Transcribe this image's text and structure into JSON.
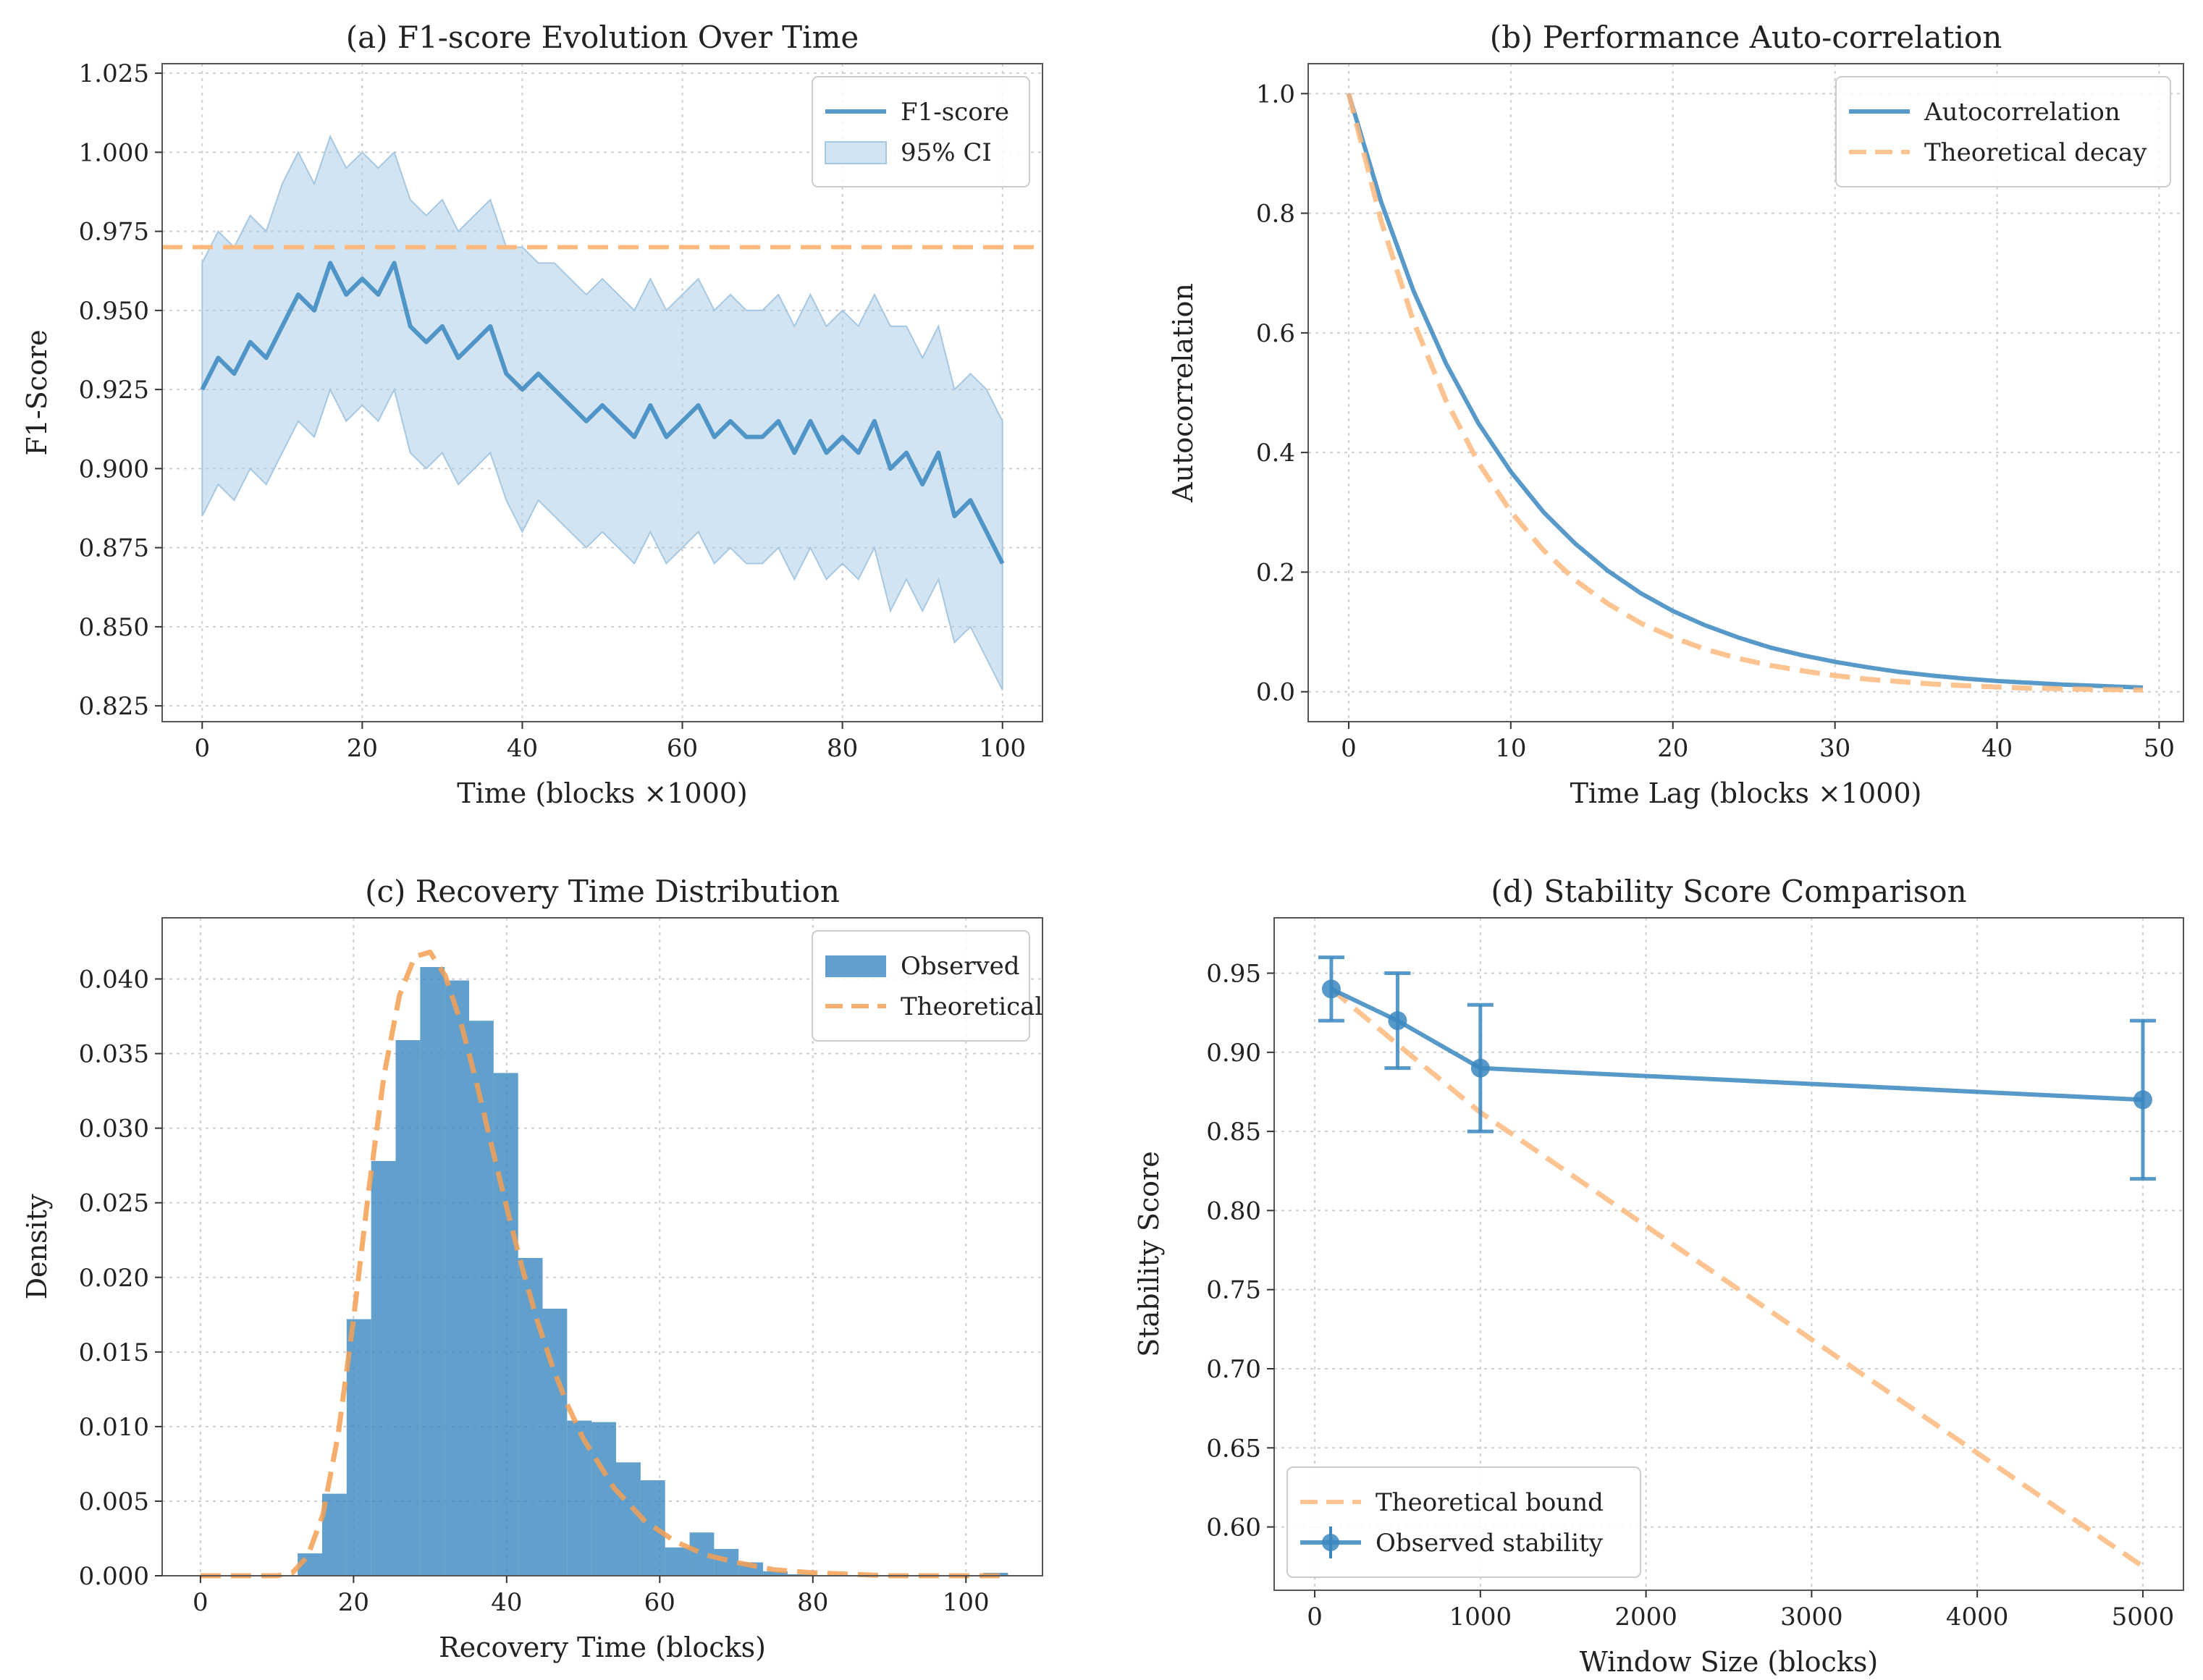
{
  "chart_data": [
    {
      "id": "a",
      "type": "line",
      "title": "(a) F1-score Evolution Over Time",
      "xlabel": "Time (blocks ×1000)",
      "ylabel": "F1-Score",
      "xlim": [
        -5,
        105
      ],
      "ylim": [
        0.82,
        1.028
      ],
      "xticks": [
        0,
        20,
        40,
        60,
        80,
        100
      ],
      "yticks": [
        0.825,
        0.85,
        0.875,
        0.9,
        0.925,
        0.95,
        0.975,
        1.0,
        1.025
      ],
      "ytick_labels": [
        "0.825",
        "0.850",
        "0.875",
        "0.900",
        "0.925",
        "0.950",
        "0.975",
        "1.000",
        "1.025"
      ],
      "grid": true,
      "legend": {
        "position": "top-right",
        "entries": [
          "F1-score",
          "95% CI"
        ]
      },
      "reference_line": {
        "y": 0.97,
        "style": "dashed",
        "color": "#fdb97d"
      },
      "series": [
        {
          "name": "F1-score",
          "color": "#3a87c0",
          "x": [
            0,
            2,
            4,
            6,
            8,
            10,
            12,
            14,
            16,
            18,
            20,
            22,
            24,
            26,
            28,
            30,
            32,
            34,
            36,
            38,
            40,
            42,
            44,
            46,
            48,
            50,
            52,
            54,
            56,
            58,
            60,
            62,
            64,
            66,
            68,
            70,
            72,
            74,
            76,
            78,
            80,
            82,
            84,
            86,
            88,
            90,
            92,
            94,
            96,
            98,
            100
          ],
          "y": [
            0.925,
            0.935,
            0.93,
            0.94,
            0.935,
            0.945,
            0.955,
            0.95,
            0.965,
            0.955,
            0.96,
            0.955,
            0.965,
            0.945,
            0.94,
            0.945,
            0.935,
            0.94,
            0.945,
            0.93,
            0.925,
            0.93,
            0.925,
            0.92,
            0.915,
            0.92,
            0.915,
            0.91,
            0.92,
            0.91,
            0.915,
            0.92,
            0.91,
            0.915,
            0.91,
            0.91,
            0.915,
            0.905,
            0.915,
            0.905,
            0.91,
            0.905,
            0.915,
            0.9,
            0.905,
            0.895,
            0.905,
            0.885,
            0.89,
            0.88,
            0.87
          ]
        },
        {
          "name": "95% CI",
          "color": "#a6c8e3",
          "upper": [
            0.965,
            0.975,
            0.97,
            0.98,
            0.975,
            0.99,
            1.0,
            0.99,
            1.005,
            0.995,
            1.0,
            0.995,
            1.0,
            0.985,
            0.98,
            0.985,
            0.975,
            0.98,
            0.985,
            0.97,
            0.97,
            0.965,
            0.965,
            0.96,
            0.955,
            0.96,
            0.955,
            0.95,
            0.96,
            0.95,
            0.955,
            0.96,
            0.95,
            0.955,
            0.95,
            0.95,
            0.955,
            0.945,
            0.955,
            0.945,
            0.95,
            0.945,
            0.955,
            0.945,
            0.945,
            0.935,
            0.945,
            0.925,
            0.93,
            0.925,
            0.915
          ],
          "lower": [
            0.885,
            0.895,
            0.89,
            0.9,
            0.895,
            0.905,
            0.915,
            0.91,
            0.925,
            0.915,
            0.92,
            0.915,
            0.925,
            0.905,
            0.9,
            0.905,
            0.895,
            0.9,
            0.905,
            0.89,
            0.88,
            0.89,
            0.885,
            0.88,
            0.875,
            0.88,
            0.875,
            0.87,
            0.88,
            0.87,
            0.875,
            0.88,
            0.87,
            0.875,
            0.87,
            0.87,
            0.875,
            0.865,
            0.875,
            0.865,
            0.87,
            0.865,
            0.875,
            0.855,
            0.865,
            0.855,
            0.865,
            0.845,
            0.85,
            0.84,
            0.83
          ]
        }
      ]
    },
    {
      "id": "b",
      "type": "line",
      "title": "(b) Performance Auto-correlation",
      "xlabel": "Time Lag (blocks ×1000)",
      "ylabel": "Autocorrelation",
      "xlim": [
        -2.5,
        51.5
      ],
      "ylim": [
        -0.05,
        1.05
      ],
      "xticks": [
        0,
        10,
        20,
        30,
        40,
        50
      ],
      "yticks": [
        0.0,
        0.2,
        0.4,
        0.6,
        0.8,
        1.0
      ],
      "ytick_labels": [
        "0.0",
        "0.2",
        "0.4",
        "0.6",
        "0.8",
        "1.0"
      ],
      "grid": true,
      "legend": {
        "position": "top-right",
        "entries": [
          "Autocorrelation",
          "Theoretical decay"
        ]
      },
      "series": [
        {
          "name": "Autocorrelation",
          "color": "#3a87c0",
          "style": "solid",
          "x": [
            0,
            2,
            4,
            6,
            8,
            10,
            12,
            14,
            16,
            18,
            20,
            22,
            24,
            26,
            28,
            30,
            32,
            34,
            36,
            38,
            40,
            42,
            44,
            46,
            48,
            49
          ],
          "y": [
            1.0,
            0.819,
            0.67,
            0.549,
            0.449,
            0.368,
            0.301,
            0.247,
            0.202,
            0.165,
            0.135,
            0.111,
            0.091,
            0.074,
            0.061,
            0.05,
            0.041,
            0.033,
            0.027,
            0.022,
            0.018,
            0.015,
            0.012,
            0.01,
            0.008,
            0.007
          ]
        },
        {
          "name": "Theoretical decay",
          "color": "#fdb97d",
          "style": "dashed",
          "x": [
            0,
            2,
            4,
            6,
            8,
            10,
            12,
            14,
            16,
            18,
            20,
            22,
            24,
            26,
            28,
            30,
            32,
            34,
            36,
            38,
            40,
            42,
            44,
            46,
            48,
            49
          ],
          "y": [
            1.0,
            0.787,
            0.619,
            0.487,
            0.383,
            0.301,
            0.237,
            0.186,
            0.147,
            0.115,
            0.091,
            0.071,
            0.056,
            0.044,
            0.035,
            0.027,
            0.021,
            0.017,
            0.013,
            0.01,
            0.008,
            0.006,
            0.005,
            0.004,
            0.003,
            0.003
          ]
        }
      ]
    },
    {
      "id": "c",
      "type": "bar",
      "title": "(c) Recovery Time Distribution",
      "xlabel": "Recovery Time (blocks)",
      "ylabel": "Density",
      "xlim": [
        -5,
        110
      ],
      "ylim": [
        0,
        0.0441
      ],
      "xticks": [
        0,
        20,
        40,
        60,
        80,
        100
      ],
      "yticks": [
        0.0,
        0.005,
        0.01,
        0.015,
        0.02,
        0.025,
        0.03,
        0.035,
        0.04
      ],
      "ytick_labels": [
        "0.000",
        "0.005",
        "0.010",
        "0.015",
        "0.020",
        "0.025",
        "0.030",
        "0.035",
        "0.040"
      ],
      "grid": true,
      "legend": {
        "position": "top-right",
        "entries": [
          "Observed",
          "Theoretical"
        ]
      },
      "histogram": {
        "name": "Observed",
        "color": "#3a87c0",
        "bin_width": 3.2,
        "bin_starts": [
          12.7,
          15.9,
          19.1,
          22.3,
          25.5,
          28.7,
          31.9,
          35.1,
          38.3,
          41.5,
          44.7,
          47.9,
          51.1,
          54.3,
          57.5,
          60.7,
          63.9,
          67.1,
          70.3,
          73.5,
          76.7,
          79.9,
          83.1,
          86.3,
          89.5,
          92.7,
          95.9,
          99.1,
          102.3
        ],
        "densities": [
          0.0015,
          0.0055,
          0.0172,
          0.0278,
          0.0359,
          0.0408,
          0.0399,
          0.0372,
          0.0337,
          0.0213,
          0.0179,
          0.0104,
          0.0103,
          0.0076,
          0.0064,
          0.0019,
          0.0029,
          0.0018,
          0.0009,
          0.0003,
          0.0001,
          0.0,
          0.0,
          0.0,
          0.0,
          0.0,
          0.0,
          0.0,
          0.0002
        ]
      },
      "series": [
        {
          "name": "Theoretical",
          "color": "#f5a054",
          "style": "dashed",
          "x": [
            0,
            5,
            10,
            12,
            14,
            16,
            18,
            20,
            22,
            24,
            26,
            28,
            30,
            32,
            34,
            36,
            38,
            40,
            42,
            44,
            46,
            48,
            50,
            54,
            58,
            62,
            66,
            70,
            75,
            80,
            90,
            105
          ],
          "y": [
            0.0,
            0.0,
            0.0,
            0.0002,
            0.0013,
            0.0041,
            0.0095,
            0.0172,
            0.0259,
            0.0336,
            0.0389,
            0.0415,
            0.0418,
            0.0402,
            0.0371,
            0.0332,
            0.0289,
            0.0247,
            0.0207,
            0.0171,
            0.014,
            0.0114,
            0.0092,
            0.0059,
            0.0037,
            0.0023,
            0.0014,
            0.0009,
            0.0004,
            0.0002,
            0.0,
            0.0
          ]
        }
      ]
    },
    {
      "id": "d",
      "type": "line",
      "title": "(d) Stability Score Comparison",
      "xlabel": "Window Size (blocks)",
      "ylabel": "Stability Score",
      "xlim": [
        -245,
        5245
      ],
      "ylim": [
        0.56,
        0.985
      ],
      "xticks": [
        0,
        1000,
        2000,
        3000,
        4000,
        5000
      ],
      "yticks": [
        0.6,
        0.65,
        0.7,
        0.75,
        0.8,
        0.85,
        0.9,
        0.95
      ],
      "ytick_labels": [
        "0.60",
        "0.65",
        "0.70",
        "0.75",
        "0.80",
        "0.85",
        "0.90",
        "0.95"
      ],
      "grid": true,
      "legend": {
        "position": "bottom-left",
        "entries": [
          "Theoretical bound",
          "Observed stability"
        ]
      },
      "series": [
        {
          "name": "Theoretical bound",
          "color": "#fdb97d",
          "style": "dashed",
          "x": [
            100,
            500,
            1000,
            5000
          ],
          "y": [
            0.94,
            0.905,
            0.862,
            0.575
          ]
        },
        {
          "name": "Observed stability",
          "color": "#3a87c0",
          "style": "solid-markers",
          "x": [
            100,
            500,
            1000,
            5000
          ],
          "y": [
            0.94,
            0.92,
            0.89,
            0.87
          ],
          "yerr": [
            0.02,
            0.03,
            0.04,
            0.05
          ]
        }
      ]
    }
  ]
}
